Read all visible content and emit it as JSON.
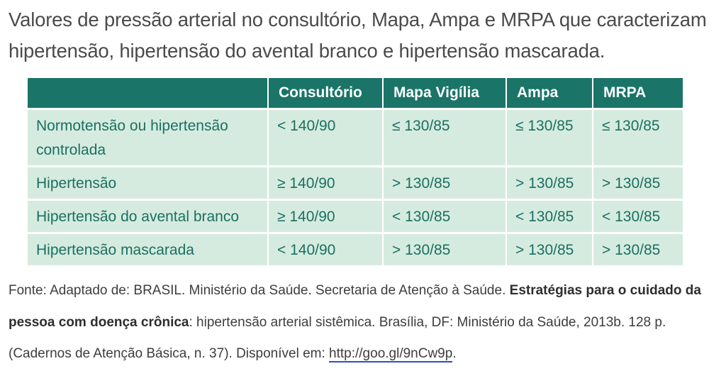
{
  "title": "Valores de pressão arterial no consultório, Mapa, Ampa e MRPA que caracterizam hipertensão, hipertensão do avental branco e hipertensão mascarada.",
  "table": {
    "headers": [
      "",
      "Consultório",
      "Mapa Vigília",
      "Ampa",
      "MRPA"
    ],
    "rows": [
      {
        "label": "Normotensão ou hipertensão controlada",
        "values": [
          "< 140/90",
          "≤ 130/85",
          "≤ 130/85",
          "≤ 130/85"
        ]
      },
      {
        "label": "Hipertensão",
        "values": [
          "≥ 140/90",
          "> 130/85",
          "> 130/85",
          "> 130/85"
        ]
      },
      {
        "label": "Hipertensão do avental branco",
        "values": [
          "≥ 140/90",
          "< 130/85",
          "< 130/85",
          "< 130/85"
        ]
      },
      {
        "label": "Hipertensão mascarada",
        "values": [
          "< 140/90",
          "> 130/85",
          "> 130/85",
          "> 130/85"
        ]
      }
    ]
  },
  "source": {
    "prefix": "Fonte: Adaptado de: BRASIL. Ministério da Saúde. Secretaria de Atenção à Saúde. ",
    "bold_title": "Estratégias para o cuidado da pessoa com doença crônica",
    "suffix": ": hipertensão arterial sistêmica. Brasília, DF: Ministério da Saúde, 2013b. 128 p. (Cadernos de Atenção Básica, n. 37). Disponível em: ",
    "link": "http://goo.gl/9nCw9p",
    "end": "."
  }
}
